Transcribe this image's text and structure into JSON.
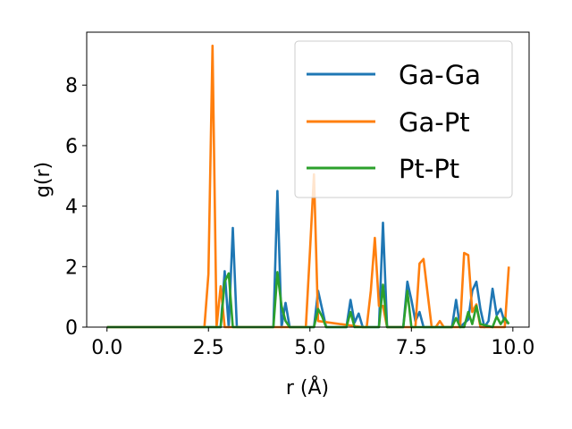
{
  "chart_data": {
    "type": "line",
    "xlabel": "r (Å)",
    "ylabel": "g(r)",
    "xlim": [
      -0.5,
      10.4
    ],
    "ylim": [
      0,
      9.75
    ],
    "grid": false,
    "legend_position": "top-right",
    "xticks": [
      "0.0",
      "2.5",
      "5.0",
      "7.5",
      "10.0"
    ],
    "xtick_values": [
      0,
      2.5,
      5,
      7.5,
      10
    ],
    "yticks": [
      "0",
      "2",
      "4",
      "6",
      "8"
    ],
    "ytick_values": [
      0,
      2,
      4,
      6,
      8
    ],
    "series": [
      {
        "name": "Ga-Ga",
        "color": "#1f77b4",
        "x": [
          0,
          2.7,
          2.8,
          2.9,
          3.0,
          3.1,
          3.2,
          4.1,
          4.2,
          4.3,
          4.4,
          4.5,
          4.6,
          5.1,
          5.2,
          5.3,
          5.4,
          5.9,
          6.0,
          6.1,
          6.2,
          6.3,
          6.7,
          6.8,
          6.9,
          7.3,
          7.4,
          7.5,
          7.6,
          7.7,
          7.8,
          8.5,
          8.6,
          8.7,
          8.9,
          9.0,
          9.1,
          9.2,
          9.3,
          9.4,
          9.5,
          9.6,
          9.7,
          9.8,
          9.9
        ],
        "y": [
          0,
          0,
          0,
          1.85,
          0,
          3.28,
          0,
          0,
          4.5,
          0,
          0.8,
          0,
          0,
          0,
          1.2,
          0.6,
          0,
          0,
          0.9,
          0.15,
          0.45,
          0,
          0,
          3.45,
          0,
          0,
          1.5,
          0.9,
          0.2,
          0.5,
          0,
          0,
          0.9,
          0,
          0.25,
          1.2,
          1.5,
          0.6,
          0,
          0.2,
          1.27,
          0.4,
          0.6,
          0.15,
          0.15
        ]
      },
      {
        "name": "Ga-Pt",
        "color": "#ff7f0e",
        "x": [
          0,
          2.4,
          2.5,
          2.6,
          2.7,
          2.8,
          2.9,
          3.0,
          3.1,
          4.9,
          5.0,
          5.1,
          5.2,
          6.3,
          6.4,
          6.5,
          6.6,
          6.7,
          6.8,
          6.9,
          7.6,
          7.7,
          7.8,
          7.9,
          8.0,
          8.1,
          8.2,
          8.3,
          8.7,
          8.8,
          8.9,
          9.0,
          9.1,
          9.2,
          9.8,
          9.9
        ],
        "y": [
          0,
          0,
          1.75,
          9.3,
          0,
          1.35,
          0,
          0,
          0,
          0,
          2.5,
          5.05,
          0.2,
          0,
          0,
          1.2,
          2.95,
          0.7,
          0.7,
          0,
          0,
          2.1,
          2.25,
          1.1,
          0,
          0,
          0.2,
          0,
          0,
          2.45,
          2.38,
          0.5,
          0.75,
          0,
          0,
          2.0
        ]
      },
      {
        "name": "Pt-Pt",
        "color": "#2ca02c",
        "x": [
          0,
          2.8,
          2.9,
          3.0,
          3.1,
          4.1,
          4.2,
          4.3,
          4.4,
          4.5,
          5.1,
          5.2,
          5.3,
          5.4,
          5.9,
          6.0,
          6.1,
          6.7,
          6.8,
          6.9,
          7.3,
          7.4,
          7.5,
          7.6,
          8.5,
          8.6,
          8.7,
          8.8,
          8.9,
          9.0,
          9.1,
          9.2,
          9.5,
          9.6,
          9.7,
          9.8,
          9.9
        ],
        "y": [
          0,
          0,
          1.5,
          1.78,
          0,
          0,
          1.82,
          0.7,
          0.2,
          0,
          0,
          0.6,
          0.35,
          0,
          0,
          0.5,
          0,
          0,
          1.4,
          0,
          0,
          1.2,
          0,
          0,
          0,
          0.3,
          0,
          0,
          0.5,
          0.1,
          0.7,
          0.1,
          0,
          0.35,
          0.1,
          0.3,
          0.1
        ]
      }
    ]
  }
}
